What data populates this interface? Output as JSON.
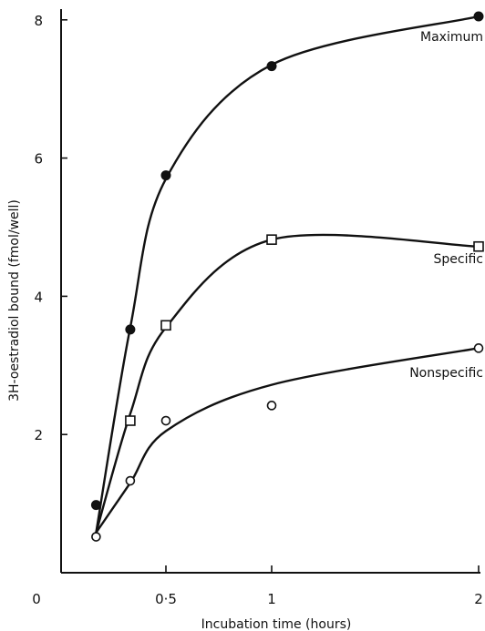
{
  "chart_data": {
    "type": "line",
    "title": "",
    "xlabel": "Incubation time (hours)",
    "ylabel": "3H-oestradiol bound (fmol/well)",
    "origin_label": "0",
    "x_tick_labels": [
      "0·5",
      "1",
      "2"
    ],
    "y_tick_labels": [
      "2",
      "4",
      "6",
      "8"
    ],
    "grid": false,
    "series": [
      {
        "name": "Maximum",
        "marker": "filled-circle",
        "x": [
          "0·167",
          "0·33",
          "0·5",
          "1",
          "2"
        ],
        "y": [
          0.98,
          3.52,
          5.75,
          7.33,
          8.05
        ],
        "curve_y": [
          0.58,
          3.55,
          5.7,
          7.35,
          8.05
        ]
      },
      {
        "name": "Specific",
        "marker": "open-square",
        "x": [
          "0·33",
          "0·5",
          "1",
          "2"
        ],
        "y": [
          2.2,
          3.58,
          4.82,
          4.72
        ],
        "curve_y": [
          0.58,
          2.3,
          3.55,
          4.82,
          4.72
        ]
      },
      {
        "name": "Nonspecific",
        "marker": "open-circle",
        "x": [
          "0·167",
          "0·33",
          "0·5",
          "1",
          "2"
        ],
        "y": [
          0.52,
          1.33,
          2.2,
          2.42,
          3.25
        ],
        "curve_y": [
          0.58,
          1.3,
          2.05,
          2.72,
          3.25
        ]
      }
    ]
  }
}
